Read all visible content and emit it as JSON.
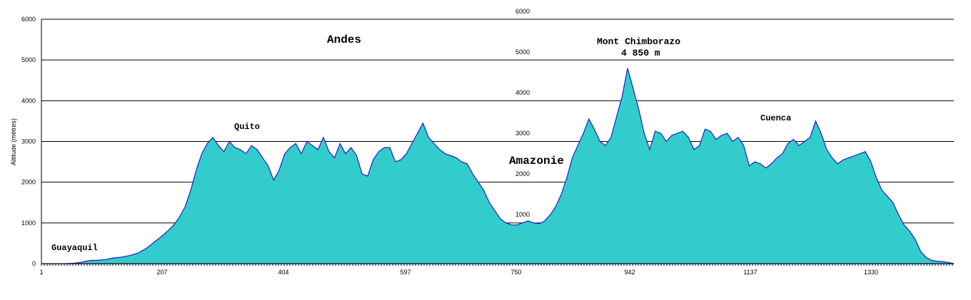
{
  "chart_data": {
    "type": "area",
    "ylabel": "Altitude (mètres)",
    "ylim": [
      0,
      6000
    ],
    "grid": true,
    "colors": {
      "fill": "#33CCCC",
      "stroke": "#1F1FBF",
      "grid": "#000000"
    },
    "y_ticks": [
      "0",
      "1000",
      "2000",
      "3000",
      "4000",
      "5000",
      "6000"
    ],
    "x_ticks": [
      "1",
      "207",
      "404",
      "597",
      "750",
      "942",
      "1137",
      "1330"
    ],
    "inner_ticks": [
      "1000",
      "2000",
      "3000",
      "4000",
      "5000",
      "6000"
    ],
    "annotations": {
      "andes": "Andes",
      "amazonie": "Amazonie",
      "peak_name": "Mont Chimborazo",
      "peak_alt": "4 850 m",
      "quito": "Quito",
      "cuenca": "Cuenca",
      "guayaquil": "Guayaquil"
    },
    "x": [
      0,
      60,
      80,
      100,
      120,
      140,
      160,
      180,
      200,
      230,
      260,
      290,
      320,
      350,
      365,
      380,
      395,
      410,
      425,
      440,
      460,
      480,
      500,
      520,
      540,
      560,
      580,
      600,
      620,
      640,
      660,
      680,
      700,
      720,
      740,
      760,
      780,
      800,
      820,
      840,
      860,
      880,
      900,
      920,
      940,
      960,
      980,
      1000,
      1020,
      1040,
      1060,
      1080,
      1100,
      1120,
      1140,
      1160,
      1180,
      1200,
      1220,
      1240,
      1260,
      1280,
      1300,
      1320,
      1340,
      1360,
      1380,
      1400,
      1420,
      1440,
      1460,
      1480,
      1500,
      1520,
      1540,
      1560,
      1580,
      1600,
      1620,
      1640,
      1660,
      1680,
      1700,
      1720,
      1740,
      1760,
      1780,
      1800,
      1820,
      1840,
      1860,
      1880,
      1900,
      1920,
      1940,
      1960,
      1980,
      2000,
      2020,
      2040,
      2060,
      2080,
      2100,
      2120,
      2140,
      2160,
      2180,
      2200,
      2220,
      2240,
      2260,
      2280,
      2300,
      2320,
      2340,
      2360,
      2380,
      2400,
      2420,
      2440,
      2460,
      2480,
      2500
    ],
    "y": [
      0,
      0,
      0,
      5,
      10,
      30,
      60,
      80,
      80,
      100,
      140,
      160,
      200,
      260,
      320,
      380,
      460,
      540,
      620,
      700,
      820,
      960,
      1150,
      1400,
      1800,
      2300,
      2700,
      2950,
      3100,
      2900,
      2750,
      3000,
      2850,
      2800,
      2700,
      2900,
      2800,
      2600,
      2400,
      2050,
      2300,
      2700,
      2850,
      2950,
      2700,
      3000,
      2900,
      2800,
      3100,
      2750,
      2600,
      2950,
      2700,
      2850,
      2650,
      2200,
      2150,
      2550,
      2750,
      2850,
      2850,
      2500,
      2550,
      2700,
      2950,
      3200,
      3450,
      3100,
      2950,
      2800,
      2700,
      2650,
      2600,
      2500,
      2450,
      2200,
      2000,
      1800,
      1500,
      1300,
      1100,
      1000,
      950,
      950,
      1000,
      1050,
      1000,
      980,
      1050,
      1200,
      1400,
      1700,
      2100,
      2600,
      2900,
      3200,
      3550,
      3300,
      3000,
      2900,
      3100,
      3600,
      4100,
      4800,
      4300,
      3800,
      3200,
      2800,
      3250,
      3200,
      3000,
      3150,
      3200,
      3250,
      3100,
      2800,
      2900,
      3300,
      3250,
      3050,
      3150,
      3200,
      3000
    ],
    "x2": [
      2500,
      2520,
      2540,
      2560,
      2580,
      2600,
      2620,
      2640,
      2660,
      2680,
      2700,
      2720,
      2740,
      2760,
      2780,
      2800,
      2820,
      2840,
      2860,
      2880,
      2900,
      2920,
      2940,
      2960,
      2980,
      3000,
      3020,
      3040,
      3060,
      3080,
      3100,
      3120,
      3140,
      3160,
      3180,
      3200,
      3220,
      3240,
      3260,
      3280,
      3300
    ],
    "y2": [
      3000,
      3100,
      2900,
      2400,
      2500,
      2450,
      2350,
      2450,
      2600,
      2700,
      2950,
      3050,
      2900,
      3000,
      3100,
      3500,
      3200,
      2800,
      2600,
      2450,
      2550,
      2600,
      2650,
      2700,
      2750,
      2500,
      2100,
      1800,
      1650,
      1500,
      1200,
      950,
      800,
      600,
      300,
      150,
      80,
      60,
      50,
      30,
      0
    ]
  }
}
